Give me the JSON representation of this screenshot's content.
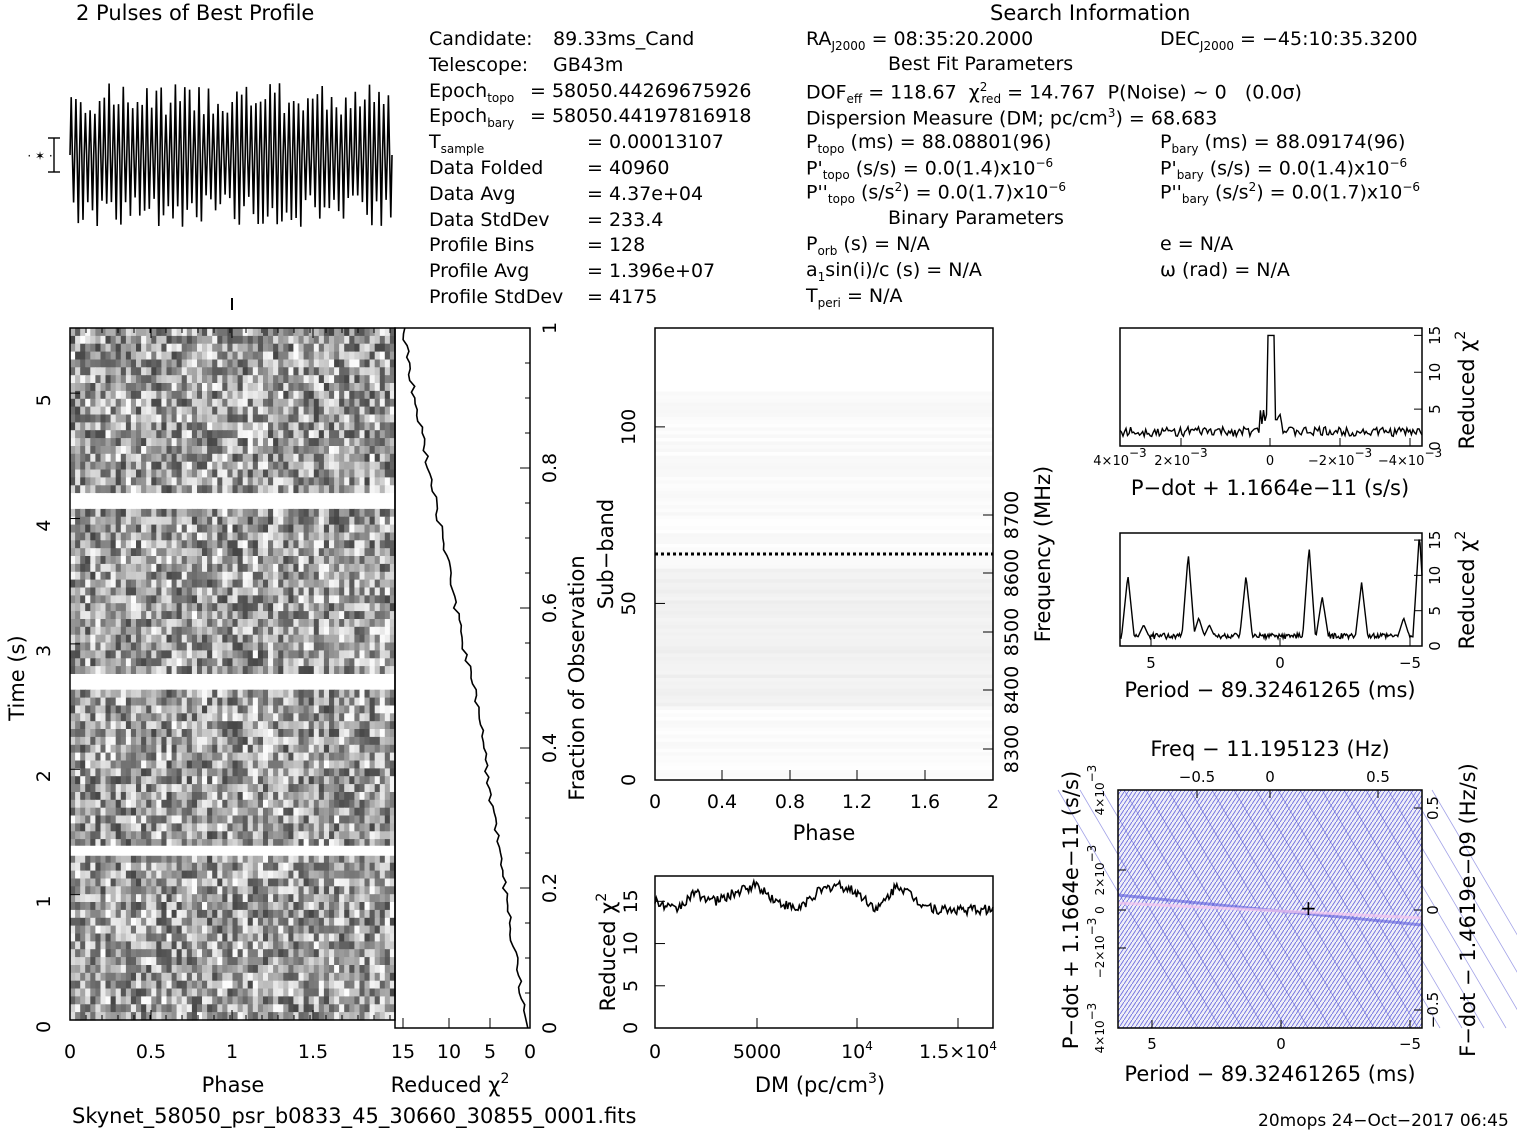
{
  "header": {
    "profile_title": "2 Pulses of Best Profile",
    "search_title": "Search Information",
    "best_fit_title": "Best Fit Parameters",
    "binary_title": "Binary Parameters"
  },
  "info_left": [
    {
      "label": "Candidate:",
      "value": "89.33ms_Cand"
    },
    {
      "label": "Telescope:",
      "value": "GB43m"
    },
    {
      "label": "Epoch",
      "sub": "topo",
      "value": "= 58050.44269675926"
    },
    {
      "label": "Epoch",
      "sub": "bary",
      "value": "= 58050.44197816918"
    },
    {
      "label": "T",
      "sub": "sample",
      "value": "=   0.00013107"
    },
    {
      "label": "Data Folded",
      "value": "=   40960"
    },
    {
      "label": "Data Avg",
      "value": "=   4.37e+04"
    },
    {
      "label": "Data StdDev",
      "value": "=   233.4"
    },
    {
      "label": "Profile Bins",
      "value": "=   128"
    },
    {
      "label": "Profile Avg",
      "value": "=   1.396e+07"
    },
    {
      "label": "Profile StdDev",
      "value": "=   4175"
    }
  ],
  "info_search": {
    "ra": "RA",
    "ra_sub": "J2000",
    "ra_val": "= 08:35:20.2000",
    "dec": "DEC",
    "dec_sub": "J2000",
    "dec_val": "= −45:10:35.3200",
    "dof": "DOF",
    "dof_sub": "eff",
    "dof_val": "= 118.67",
    "chi": "χ",
    "chi_sup": "2",
    "chi_sub": "red",
    "chi_val": "= 14.767",
    "pnoise": "P(Noise) ~ 0",
    "sigma": "(0.0σ)",
    "dm": "Dispersion Measure (DM; pc/cm",
    "dm_sup": "3",
    "dm_val": ") = 68.683",
    "ptopo": "P",
    "ptopo_sub": "topo",
    "ptopo_val": "(ms) =  88.08801(96)",
    "pbary": "P",
    "pbary_sub": "bary",
    "pbary_val": "(ms) =  88.09174(96)",
    "pdtopo": "P'",
    "pdtopo_sub": "topo",
    "pdtopo_val": "(s/s) = 0.0(1.4)x10",
    "pdtopo_exp": "−6",
    "pdbary": "P'",
    "pdbary_sub": "bary",
    "pdbary_val": "(s/s) = 0.0(1.4)x10",
    "pdbary_exp": "−6",
    "pddtopo": "P''",
    "pddtopo_sub": "topo",
    "pddtopo_val": "(s/s",
    "pddtopo_sup": "2",
    "pddtopo_val2": ") = 0.0(1.7)x10",
    "pddtopo_exp": "−6",
    "pddbary": "P''",
    "pddbary_sub": "bary",
    "pddbary_val": "(s/s",
    "pddbary_sup": "2",
    "pddbary_val2": ") = 0.0(1.7)x10",
    "pddbary_exp": "−6",
    "porb": "P",
    "porb_sub": "orb",
    "porb_val": "(s) = N/A",
    "e_val": "e = N/A",
    "a1": "a",
    "a1_sub": "1",
    "a1_val": "sin(i)/c (s) = N/A",
    "omega_val": "ω (rad) = N/A",
    "tperi": "T",
    "tperi_sub": "peri",
    "tperi_val": "= N/A"
  },
  "footer": {
    "filename": "Skynet_58050_psr_b0833_45_30660_30855_0001.fits",
    "stamp": "20mops 24−Oct−2017 06:45"
  },
  "labels": {
    "time_axis": "Time (s)",
    "phase": "Phase",
    "reduced_chi": "Reduced χ",
    "chi_sup": "2",
    "fraction_obs": "Fraction of Observation",
    "subband": "Sub−band",
    "frequency": "Frequency (MHz)",
    "dm_axis": "DM (pc/cm",
    "dm_axis_sup": "3",
    "pdot_title": "P−dot + 1.1664e−11 (s/s)",
    "period_title": "Period − 89.32461265 (ms)",
    "freq_title": "Freq − 11.195123 (Hz)",
    "pdot_side": "P−dot + 1.1664e−11 (s/s)",
    "fdot_side": "F−dot − 1.4619e−09 (Hz/s)"
  },
  "ticks": {
    "time_y": [
      "0",
      "1",
      "2",
      "3",
      "4",
      "5"
    ],
    "phase_x": [
      "0",
      "0.5",
      "1",
      "1.5"
    ],
    "chi_x": [
      "15",
      "10",
      "5",
      "0"
    ],
    "frac_y": [
      "0",
      "0.2",
      "0.4",
      "0.6",
      "0.8",
      "1"
    ],
    "subband_y": [
      "0",
      "50",
      "100"
    ],
    "freq_y": [
      "8300",
      "8400",
      "8500",
      "8600",
      "8700"
    ],
    "phase2_x": [
      "0",
      "0.4",
      "0.8",
      "1.2",
      "1.6",
      "2"
    ],
    "dm_x": [
      "0",
      "5000",
      "10",
      "1.5×10"
    ],
    "dm_x_exp": "4",
    "dmchi_y": [
      "0",
      "5",
      "10",
      "15"
    ],
    "pdot_x": [
      "4×10",
      "2×10",
      "0",
      "−2×10",
      "−4×10"
    ],
    "pdot_x_exp": "−3",
    "right_chi_y": [
      "0",
      "5",
      "10",
      "15"
    ],
    "period_x": [
      "5",
      "0",
      "−5"
    ],
    "freq_top": [
      "−0.5",
      "0",
      "0.5"
    ],
    "pp_left": [
      "4×10",
      "−2×10",
      "0",
      "2×10",
      "4×10"
    ],
    "pp_left_exp": "−3",
    "pp_right": [
      "−0.5",
      "0",
      "0.5"
    ],
    "pp_period_x": [
      "5",
      "0",
      "−5"
    ]
  },
  "chart_data": [
    {
      "type": "line",
      "title": "2 Pulses of Best Profile",
      "description_free": true,
      "x": [
        0,
        2
      ],
      "ylim": [
        -1,
        1
      ],
      "cycles": 34
    },
    {
      "type": "heatmap",
      "xlabel": "Phase",
      "ylabel": "Time (s)",
      "xlim": [
        0,
        2
      ],
      "ylim": [
        0,
        5.4
      ],
      "gaps_s": [
        1.35,
        2.7,
        4.15
      ]
    },
    {
      "type": "line",
      "xlabel": "Reduced χ²",
      "ylabel": "Fraction of Observation",
      "x": [
        0,
        1,
        2,
        3,
        4,
        5,
        6,
        8,
        10,
        12,
        14,
        15
      ],
      "y": [
        0.0,
        0.05,
        0.12,
        0.2,
        0.28,
        0.35,
        0.45,
        0.55,
        0.68,
        0.8,
        0.92,
        1.0
      ],
      "xlim": [
        16,
        0
      ],
      "ylim": [
        0,
        1
      ]
    },
    {
      "type": "heatmap",
      "xlabel": "Phase",
      "ylabel": "Sub−band",
      "y2label": "Frequency (MHz)",
      "xlim": [
        0,
        2
      ],
      "ylim": [
        0,
        128
      ],
      "marker_subband": 64
    },
    {
      "type": "line",
      "xlabel": "DM (pc/cm³)",
      "ylabel": "Reduced χ²",
      "x": [
        0,
        1000,
        2000,
        3000,
        4000,
        5000,
        6000,
        7000,
        8000,
        9000,
        10000,
        11000,
        12000,
        13000,
        14000,
        15000,
        16000
      ],
      "y": [
        15,
        14,
        16,
        15,
        16,
        17,
        15,
        14,
        16,
        17,
        16,
        14,
        17,
        15,
        14,
        14,
        14
      ],
      "xlim": [
        0,
        16700
      ],
      "ylim": [
        0,
        18
      ]
    },
    {
      "type": "line",
      "xlabel": "P−dot + 1.1664e−11 (s/s)",
      "ylabel": "Reduced χ²",
      "x": [
        0.005,
        0.004,
        0.002,
        0.001,
        0.0002,
        0.0,
        -0.0002,
        -0.001,
        -0.002,
        -0.004,
        -0.005
      ],
      "y": [
        1.5,
        2,
        1.5,
        2,
        3,
        15,
        4,
        2,
        1.5,
        2,
        1.5
      ],
      "xlim": [
        0.005,
        -0.005
      ],
      "ylim": [
        0,
        16
      ]
    },
    {
      "type": "line",
      "xlabel": "Period − 89.32461265 (ms)",
      "ylabel": "Reduced χ²",
      "x": [
        6,
        5.7,
        5,
        3.4,
        3.0,
        1.2,
        0,
        -1.2,
        -2.0,
        -3.2,
        -4.5,
        -5.5
      ],
      "y": [
        1.5,
        9,
        2,
        12,
        3,
        9,
        1,
        13,
        6,
        8,
        3,
        15
      ],
      "xlim": [
        6,
        -5.5
      ],
      "ylim": [
        0,
        16
      ]
    },
    {
      "type": "heatmap",
      "xlabel": "Period − 89.32461265 (ms)",
      "ylabel": "P−dot + 1.1664e−11 (s/s)",
      "x2label": "Freq − 11.195123 (Hz)",
      "y2label": "F−dot − 1.4619e−09 (Hz/s)",
      "xlim": [
        6,
        -5.5
      ],
      "ylim": [
        0.005,
        -0.005
      ],
      "best": {
        "period": -1.2,
        "pdot": 0
      }
    }
  ]
}
